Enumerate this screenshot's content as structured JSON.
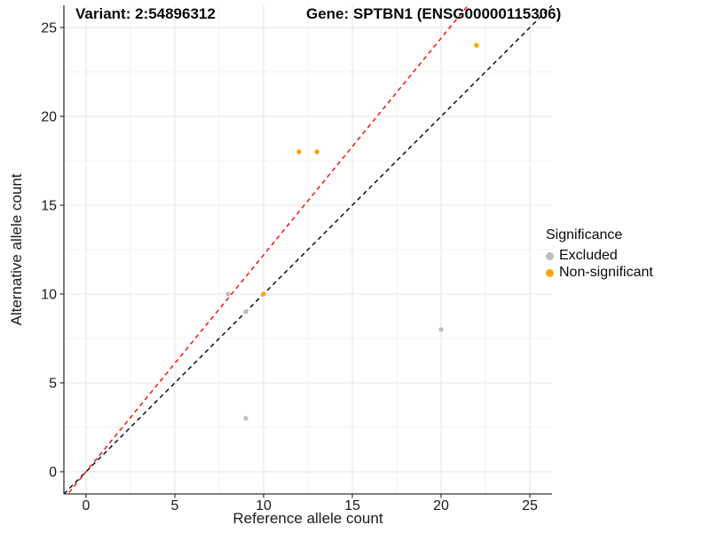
{
  "header": {
    "title_left": "Variant: 2:54896312",
    "title_right": "Gene: SPTBN1 (ENSG00000115306)"
  },
  "chart_data": {
    "type": "scatter",
    "xlabel": "Reference allele count",
    "ylabel": "Alternative allele count",
    "xlim": [
      -1.25,
      26.25
    ],
    "ylim": [
      -1.25,
      26.25
    ],
    "major_ticks": [
      0,
      5,
      10,
      15,
      20,
      25
    ],
    "minor_ticks": [
      2.5,
      7.5,
      12.5,
      17.5,
      22.5
    ],
    "grid": "major+minor",
    "series": [
      {
        "name": "Excluded",
        "color": "#BEBEBE",
        "points": [
          [
            8,
            10
          ],
          [
            9,
            9
          ],
          [
            20,
            8
          ],
          [
            9,
            3
          ]
        ]
      },
      {
        "name": "Non-significant",
        "color": "#FFA500",
        "points": [
          [
            10,
            10
          ],
          [
            12,
            18
          ],
          [
            13,
            18
          ],
          [
            22,
            24
          ]
        ]
      }
    ],
    "lines": [
      {
        "name": "identity-line",
        "slope": 1.0,
        "intercept": 0,
        "color": "#000000",
        "style": "dashed"
      },
      {
        "name": "allelic-ratio-line",
        "slope": 1.22,
        "intercept": 0,
        "color": "#FF0000",
        "style": "dashed"
      }
    ],
    "legend": {
      "title": "Significance",
      "position": "right",
      "items": [
        {
          "label": "Excluded",
          "color": "#BEBEBE"
        },
        {
          "label": "Non-significant",
          "color": "#FFA500"
        }
      ]
    },
    "colors": {
      "axis_line": "#333333",
      "grid_major": "#E6E6E6",
      "grid_minor": "#F2F2F2",
      "tick_text": "#1A1A1A"
    }
  }
}
